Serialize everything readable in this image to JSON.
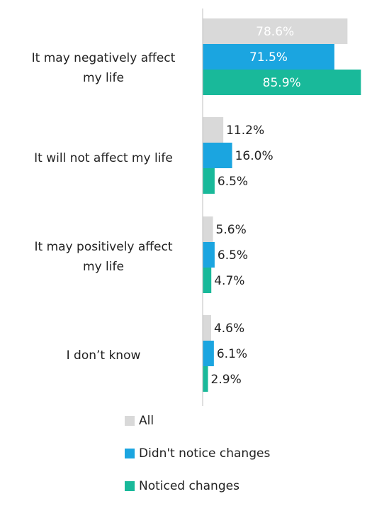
{
  "chart_data": {
    "type": "bar",
    "orientation": "horizontal",
    "categories": [
      [
        "It may negatively affect",
        "my life"
      ],
      [
        "It will not affect my life"
      ],
      [
        "It may positively affect",
        "my life"
      ],
      [
        "I don’t know"
      ]
    ],
    "series": [
      {
        "name": "All",
        "color": "#d9d9d9",
        "values": [
          78.6,
          11.2,
          5.6,
          4.6
        ]
      },
      {
        "name": "Didn't notice changes",
        "color": "#1ba5e0",
        "values": [
          71.5,
          16.0,
          6.5,
          6.1
        ]
      },
      {
        "name": "Noticed changes",
        "color": "#19b99a",
        "values": [
          85.9,
          6.5,
          4.7,
          2.9
        ]
      }
    ],
    "value_suffix": "%",
    "xlim": [
      0,
      100
    ],
    "axis_line": true,
    "grid": false,
    "legend": "bottom"
  }
}
